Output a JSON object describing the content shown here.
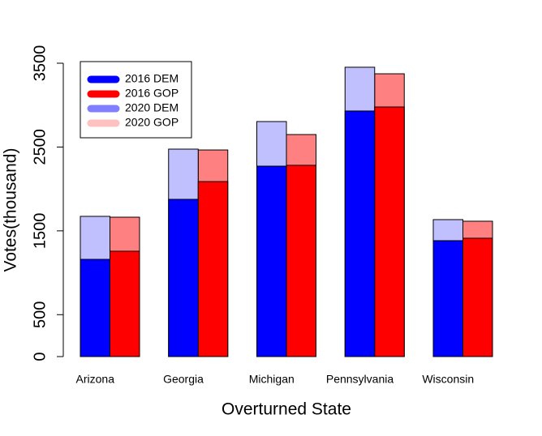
{
  "chart_data": {
    "type": "bar",
    "overlay": true,
    "x_label": "Overturned State",
    "y_label": "Votes(thousand)",
    "categories": [
      "Arizona",
      "Georgia",
      "Michigan",
      "Pennsylvania",
      "Wisconsin"
    ],
    "series": [
      {
        "name": "2016 DEM",
        "party": "DEM",
        "color": "#0000ff",
        "legend_color": "#0000ff",
        "values": [
          1160,
          1876,
          2272,
          2930,
          1383
        ]
      },
      {
        "name": "2016 GOP",
        "party": "GOP",
        "color": "#ff0000",
        "legend_color": "#ff0000",
        "values": [
          1257,
          2088,
          2282,
          2978,
          1412
        ]
      },
      {
        "name": "2020 DEM",
        "party": "DEM",
        "color": "#c0c0ff",
        "legend_color": "#8080ff",
        "values": [
          1673,
          2475,
          2804,
          3452,
          1634
        ]
      },
      {
        "name": "2020 GOP",
        "party": "GOP",
        "color": "#ff8080",
        "legend_color": "#ffc0c0",
        "values": [
          1663,
          2465,
          2649,
          3374,
          1615
        ]
      }
    ],
    "ylim": [
      0,
      3500
    ],
    "yticks": [
      0,
      500,
      1500,
      2500,
      3500
    ],
    "legend": "top-left"
  }
}
